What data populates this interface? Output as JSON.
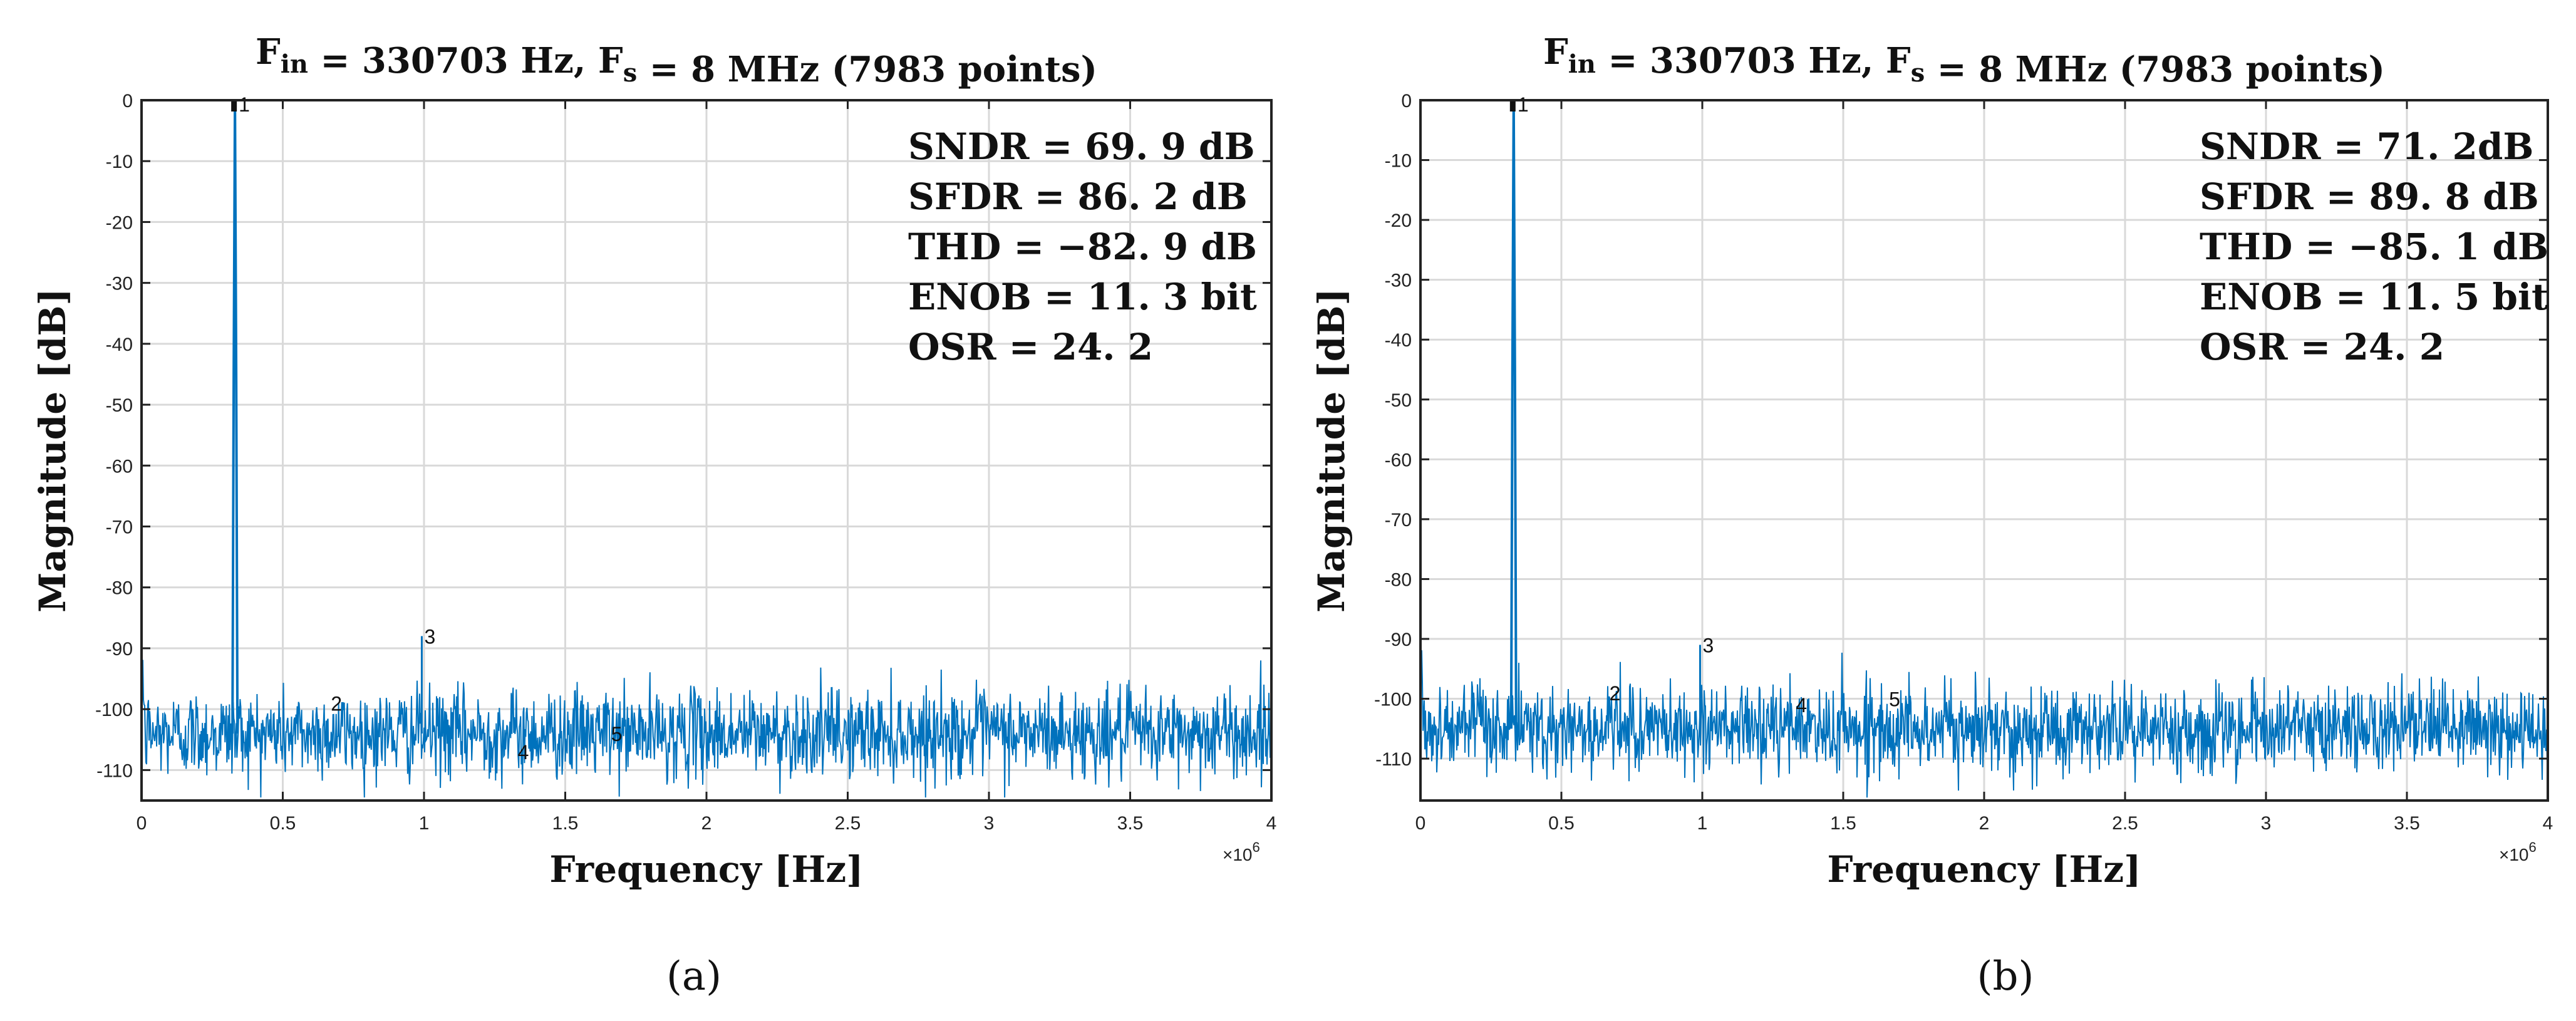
{
  "chart_data": [
    {
      "type": "line",
      "panel_label": "(a)",
      "title": "F_in = 330703 Hz, F_s = 8 MHz (7983 points)",
      "title_parts": {
        "f_in": "F",
        "f_in_sub": "in",
        "f_in_eq": " =  330703 Hz, ",
        "f_s": "F",
        "f_s_sub": "s",
        "f_s_eq": " = 8 MHz (7983 points)"
      },
      "xlabel": "Frequency [Hz]",
      "ylabel": "Magnitude [dB]",
      "x_multiplier": "×10",
      "x_multiplier_exp": "6",
      "xlim": [
        0,
        4000000
      ],
      "ylim": [
        -115,
        0
      ],
      "xticks": [
        0,
        500000,
        1000000,
        1500000,
        2000000,
        2500000,
        3000000,
        3500000,
        4000000
      ],
      "xtick_labels": [
        "0",
        "0.5",
        "1",
        "1.5",
        "2",
        "2.5",
        "3",
        "3.5",
        "4"
      ],
      "yticks": [
        0,
        -10,
        -20,
        -30,
        -40,
        -50,
        -60,
        -70,
        -80,
        -90,
        -100,
        -110
      ],
      "ytick_labels": [
        "0",
        "-10",
        "-20",
        "-30",
        "-40",
        "-50",
        "-60",
        "-70",
        "-80",
        "-90",
        "-100",
        "-110"
      ],
      "grid": true,
      "series_color": "#0072BD",
      "noise_floor_db": -104,
      "fundamental": {
        "freq": 330703,
        "mag": 0
      },
      "harmonics": [
        {
          "label": "1",
          "freq": 330703,
          "mag": 0
        },
        {
          "label": "2",
          "freq": 661406,
          "mag": -99
        },
        {
          "label": "3",
          "freq": 992109,
          "mag": -88
        },
        {
          "label": "4",
          "freq": 1322812,
          "mag": -107
        },
        {
          "label": "5",
          "freq": 1653515,
          "mag": -104
        }
      ],
      "stats": [
        "SNDR = 69. 9 dB",
        "SFDR = 86. 2 dB",
        "THD = −82. 9 dB",
        "ENOB = 11. 3 bit",
        "OSR = 24. 2"
      ]
    },
    {
      "type": "line",
      "panel_label": "(b)",
      "title": "F_in = 330703 Hz, F_s = 8 MHz (7983 points)",
      "title_parts": {
        "f_in": "F",
        "f_in_sub": "in",
        "f_in_eq": " =  330703 Hz, ",
        "f_s": "F",
        "f_s_sub": "s",
        "f_s_eq": " = 8 MHz (7983 points)"
      },
      "xlabel": "Frequency [Hz]",
      "ylabel": "Magnitude [dB]",
      "x_multiplier": "×10",
      "x_multiplier_exp": "6",
      "xlim": [
        0,
        4000000
      ],
      "ylim": [
        -117,
        0
      ],
      "xticks": [
        0,
        500000,
        1000000,
        1500000,
        2000000,
        2500000,
        3000000,
        3500000,
        4000000
      ],
      "xtick_labels": [
        "0",
        "0.5",
        "1",
        "1.5",
        "2",
        "2.5",
        "3",
        "3.5",
        "4"
      ],
      "yticks": [
        0,
        -10,
        -20,
        -30,
        -40,
        -50,
        -60,
        -70,
        -80,
        -90,
        -100,
        -110
      ],
      "ytick_labels": [
        "0",
        "-10",
        "-20",
        "-30",
        "-40",
        "-50",
        "-60",
        "-70",
        "-80",
        "-90",
        "-100",
        "-110"
      ],
      "grid": true,
      "series_color": "#0072BD",
      "noise_floor_db": -105,
      "fundamental": {
        "freq": 330703,
        "mag": 0
      },
      "harmonics": [
        {
          "label": "1",
          "freq": 330703,
          "mag": 0
        },
        {
          "label": "2",
          "freq": 661406,
          "mag": -99
        },
        {
          "label": "3",
          "freq": 992109,
          "mag": -91
        },
        {
          "label": "4",
          "freq": 1322812,
          "mag": -101
        },
        {
          "label": "5",
          "freq": 1653515,
          "mag": -100
        }
      ],
      "stats": [
        "SNDR = 71. 2dB",
        "SFDR = 89. 8 dB",
        "THD = −85. 1 dB",
        "ENOB = 11. 5 bit",
        "OSR = 24. 2"
      ]
    }
  ]
}
